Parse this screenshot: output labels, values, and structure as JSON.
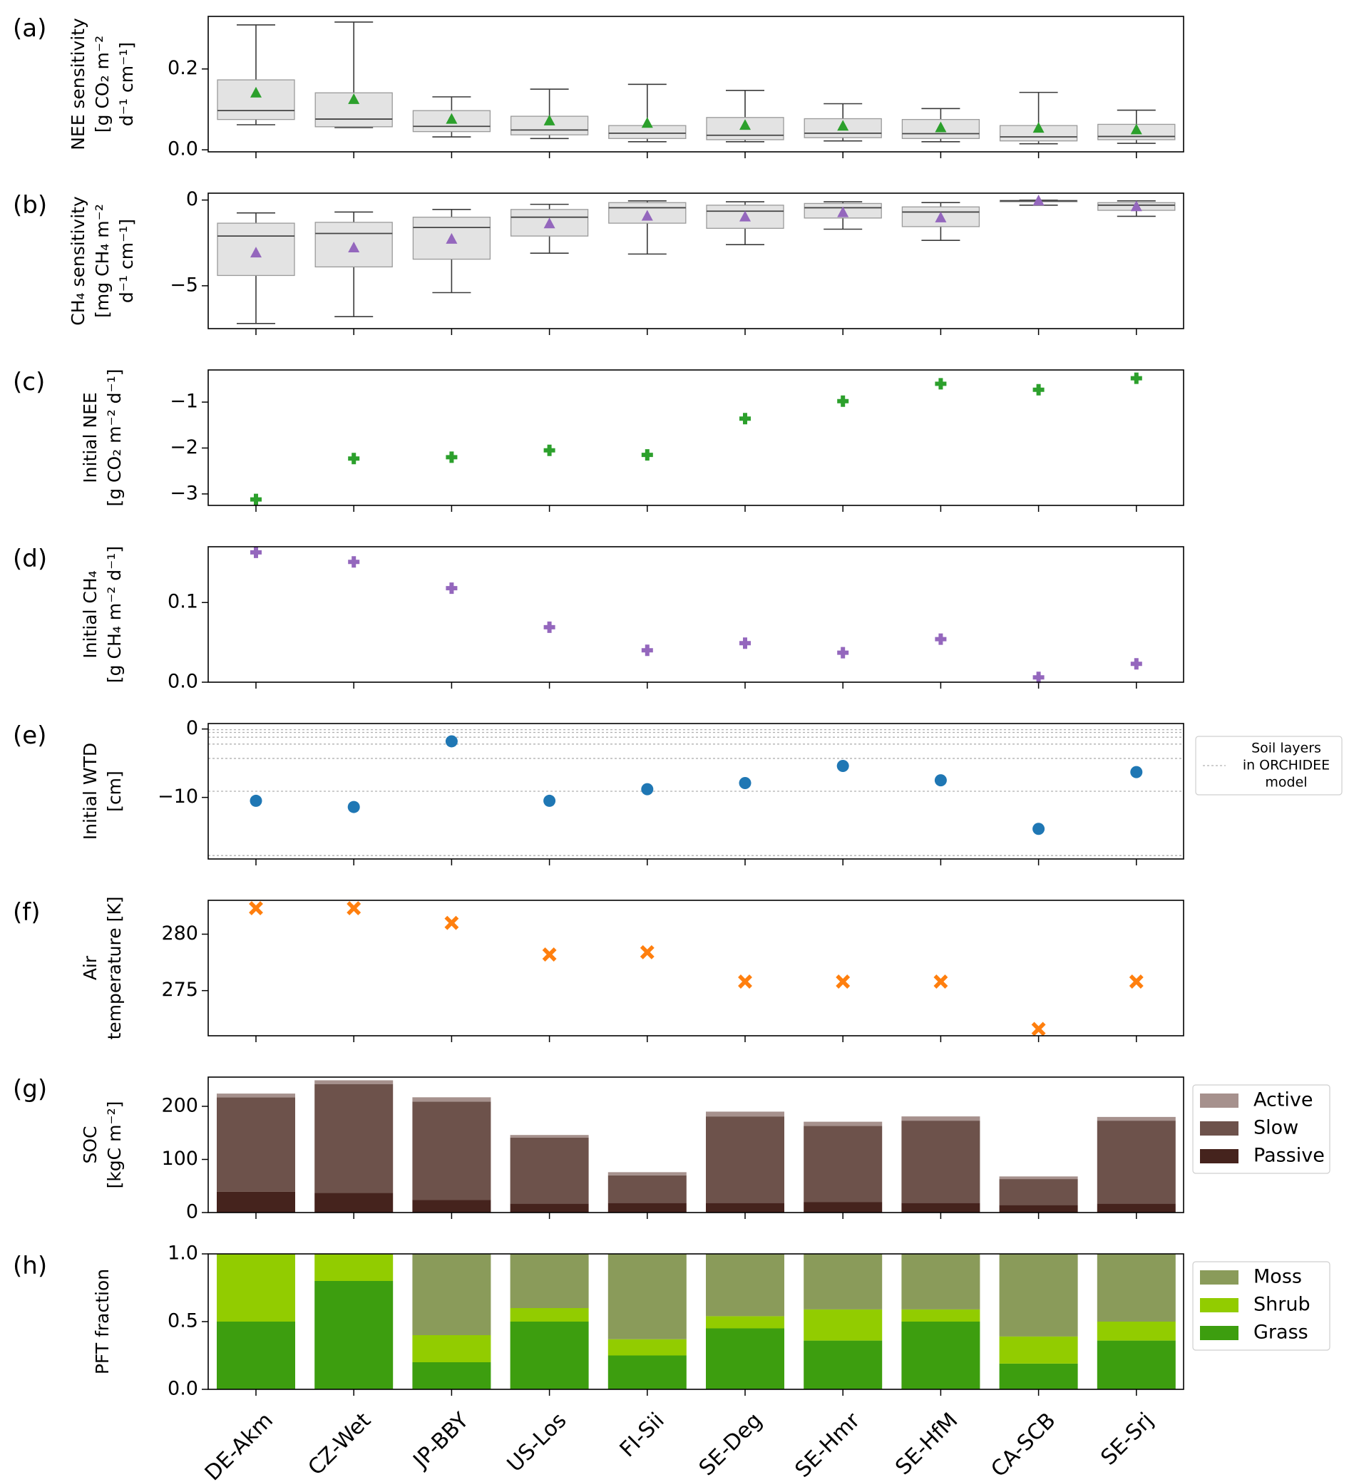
{
  "chart_data": {
    "type": "multi-panel",
    "sites": [
      "DE-Akm",
      "CZ-Wet",
      "JP-BBY",
      "US-Los",
      "FI-Sii",
      "SE-Deg",
      "SE-Hmr",
      "SE-HfM",
      "CA-SCB",
      "SE-Srj"
    ],
    "panels": [
      {
        "id": "a",
        "letter": "(a)",
        "type": "box",
        "ylabel_lines": [
          "NEE sensitivity",
          "[g CO₂ m⁻²",
          "d⁻¹ cm⁻¹]"
        ],
        "ylim": [
          -0.005,
          0.33
        ],
        "yticks": [
          0.0,
          0.2
        ],
        "ytick_labels": [
          "0.0",
          "0.2"
        ],
        "mean_color": "#2ca02c",
        "boxes": [
          {
            "whislo": 0.062,
            "q1": 0.075,
            "med": 0.097,
            "q3": 0.173,
            "whishi": 0.309,
            "mean": 0.14
          },
          {
            "whislo": 0.055,
            "q1": 0.057,
            "med": 0.076,
            "q3": 0.141,
            "whishi": 0.316,
            "mean": 0.124
          },
          {
            "whislo": 0.032,
            "q1": 0.045,
            "med": 0.058,
            "q3": 0.097,
            "whishi": 0.131,
            "mean": 0.075
          },
          {
            "whislo": 0.028,
            "q1": 0.037,
            "med": 0.049,
            "q3": 0.083,
            "whishi": 0.15,
            "mean": 0.071
          },
          {
            "whislo": 0.02,
            "q1": 0.028,
            "med": 0.041,
            "q3": 0.06,
            "whishi": 0.162,
            "mean": 0.065
          },
          {
            "whislo": 0.02,
            "q1": 0.025,
            "med": 0.036,
            "q3": 0.08,
            "whishi": 0.147,
            "mean": 0.06
          },
          {
            "whislo": 0.022,
            "q1": 0.03,
            "med": 0.041,
            "q3": 0.077,
            "whishi": 0.114,
            "mean": 0.058
          },
          {
            "whislo": 0.02,
            "q1": 0.028,
            "med": 0.04,
            "q3": 0.075,
            "whishi": 0.102,
            "mean": 0.054
          },
          {
            "whislo": 0.015,
            "q1": 0.022,
            "med": 0.032,
            "q3": 0.06,
            "whishi": 0.142,
            "mean": 0.053
          },
          {
            "whislo": 0.016,
            "q1": 0.025,
            "med": 0.033,
            "q3": 0.063,
            "whishi": 0.098,
            "mean": 0.049
          }
        ]
      },
      {
        "id": "b",
        "letter": "(b)",
        "type": "box",
        "ylabel_lines": [
          "CH₄ sensitivity",
          "[mg CH₄ m⁻²",
          "d⁻¹ cm⁻¹]"
        ],
        "ylim": [
          -7.5,
          0.4
        ],
        "yticks": [
          -5,
          0
        ],
        "ytick_labels": [
          "−5",
          "0"
        ],
        "mean_color": "#9467bd",
        "boxes": [
          {
            "whislo": -7.2,
            "q1": -4.4,
            "med": -2.1,
            "q3": -1.35,
            "whishi": -0.75,
            "mean": -3.1
          },
          {
            "whislo": -6.8,
            "q1": -3.9,
            "med": -1.95,
            "q3": -1.3,
            "whishi": -0.7,
            "mean": -2.8
          },
          {
            "whislo": -5.4,
            "q1": -3.45,
            "med": -1.6,
            "q3": -1.0,
            "whishi": -0.55,
            "mean": -2.3
          },
          {
            "whislo": -3.1,
            "q1": -2.1,
            "med": -1.0,
            "q3": -0.55,
            "whishi": -0.25,
            "mean": -1.4
          },
          {
            "whislo": -3.15,
            "q1": -1.35,
            "med": -0.45,
            "q3": -0.15,
            "whishi": -0.05,
            "mean": -0.95
          },
          {
            "whislo": -2.6,
            "q1": -1.65,
            "med": -0.65,
            "q3": -0.3,
            "whishi": -0.1,
            "mean": -1.0
          },
          {
            "whislo": -1.7,
            "q1": -1.05,
            "med": -0.45,
            "q3": -0.2,
            "whishi": -0.1,
            "mean": -0.75
          },
          {
            "whislo": -2.35,
            "q1": -1.55,
            "med": -0.7,
            "q3": -0.4,
            "whishi": -0.15,
            "mean": -1.05
          },
          {
            "whislo": -0.3,
            "q1": -0.1,
            "med": -0.05,
            "q3": -0.02,
            "whishi": 0.0,
            "mean": -0.06
          },
          {
            "whislo": -0.95,
            "q1": -0.6,
            "med": -0.3,
            "q3": -0.15,
            "whishi": -0.05,
            "mean": -0.4
          }
        ]
      },
      {
        "id": "c",
        "letter": "(c)",
        "type": "scatter",
        "marker": "plus",
        "ylabel_lines": [
          "Initial NEE",
          "[g CO₂ m⁻² d⁻¹]"
        ],
        "ylim": [
          -3.25,
          -0.3
        ],
        "yticks": [
          -3,
          -2,
          -1
        ],
        "ytick_labels": [
          "−3",
          "−2",
          "−1"
        ],
        "color": "#2ca02c",
        "values": [
          -3.12,
          -2.23,
          -2.2,
          -2.05,
          -2.15,
          -1.36,
          -0.98,
          -0.6,
          -0.73,
          -0.48
        ]
      },
      {
        "id": "d",
        "letter": "(d)",
        "type": "scatter",
        "marker": "plus",
        "ylabel_lines": [
          "Initial CH₄",
          "[g CH₄ m⁻² d⁻¹]"
        ],
        "ylim": [
          0.0,
          0.17
        ],
        "yticks": [
          0.0,
          0.1
        ],
        "ytick_labels": [
          "0.0",
          "0.1"
        ],
        "color": "#9467bd",
        "values": [
          0.163,
          0.151,
          0.118,
          0.069,
          0.04,
          0.049,
          0.037,
          0.054,
          0.006,
          0.023
        ]
      },
      {
        "id": "e",
        "letter": "(e)",
        "type": "scatter",
        "marker": "circle",
        "ylabel_lines": [
          "Initial WTD",
          "[cm]"
        ],
        "ylim": [
          -19.0,
          0.8
        ],
        "yticks": [
          -10,
          0
        ],
        "ytick_labels": [
          "−10",
          "0"
        ],
        "color": "#1f77b4",
        "values": [
          -10.5,
          -11.4,
          -1.8,
          -10.5,
          -8.8,
          -7.9,
          -5.4,
          -7.5,
          -14.6,
          -6.3
        ],
        "soil_layers": [
          -0.1,
          -0.5,
          -1.2,
          -2.2,
          -4.3,
          -9.1,
          -18.5
        ],
        "legend": [
          "Soil layers",
          "in ORCHIDEE",
          "model"
        ]
      },
      {
        "id": "f",
        "letter": "(f)",
        "type": "scatter",
        "marker": "x",
        "ylabel_lines": [
          "Air",
          "temperature [K]"
        ],
        "ylim": [
          271.0,
          283.0
        ],
        "yticks": [
          275,
          280
        ],
        "ytick_labels": [
          "275",
          "280"
        ],
        "color": "#ff7f0e",
        "values": [
          282.3,
          282.3,
          281.0,
          278.2,
          278.4,
          275.8,
          275.8,
          275.8,
          271.6,
          275.8
        ]
      },
      {
        "id": "g",
        "letter": "(g)",
        "type": "stacked-bar",
        "ylabel_lines": [
          "SOC",
          "[kgC m⁻²]"
        ],
        "ylim": [
          0,
          255
        ],
        "yticks": [
          0,
          100,
          200
        ],
        "ytick_labels": [
          "0",
          "100",
          "200"
        ],
        "series": [
          {
            "name": "Passive",
            "color": "#45231d",
            "values": [
              39,
              37,
              24,
              17,
              18,
              18,
              20,
              18,
              14,
              17
            ]
          },
          {
            "name": "Slow",
            "color": "#6d524b",
            "values": [
              178,
              205,
              185,
              124,
              52,
              163,
              143,
              155,
              49,
              156
            ]
          },
          {
            "name": "Active",
            "color": "#a6918d",
            "values": [
              7,
              7,
              8,
              5,
              6,
              9,
              8,
              8,
              5,
              7
            ]
          }
        ],
        "legend_order": [
          "Active",
          "Slow",
          "Passive"
        ]
      },
      {
        "id": "h",
        "letter": "(h)",
        "type": "stacked-bar",
        "ylabel_lines": [
          "PFT fraction"
        ],
        "ylim": [
          0,
          1.0
        ],
        "yticks": [
          0.0,
          0.5,
          1.0
        ],
        "ytick_labels": [
          "0.0",
          "0.5",
          "1.0"
        ],
        "series": [
          {
            "name": "Grass",
            "color": "#3d9e0f",
            "values": [
              0.5,
              0.8,
              0.2,
              0.5,
              0.25,
              0.45,
              0.36,
              0.5,
              0.19,
              0.36
            ]
          },
          {
            "name": "Shrub",
            "color": "#92cc00",
            "values": [
              0.5,
              0.2,
              0.2,
              0.1,
              0.12,
              0.09,
              0.23,
              0.09,
              0.2,
              0.14
            ]
          },
          {
            "name": "Moss",
            "color": "#8a9b5a",
            "values": [
              0.0,
              0.0,
              0.6,
              0.4,
              0.63,
              0.46,
              0.41,
              0.41,
              0.61,
              0.5
            ]
          }
        ],
        "legend_order": [
          "Moss",
          "Shrub",
          "Grass"
        ]
      }
    ]
  }
}
